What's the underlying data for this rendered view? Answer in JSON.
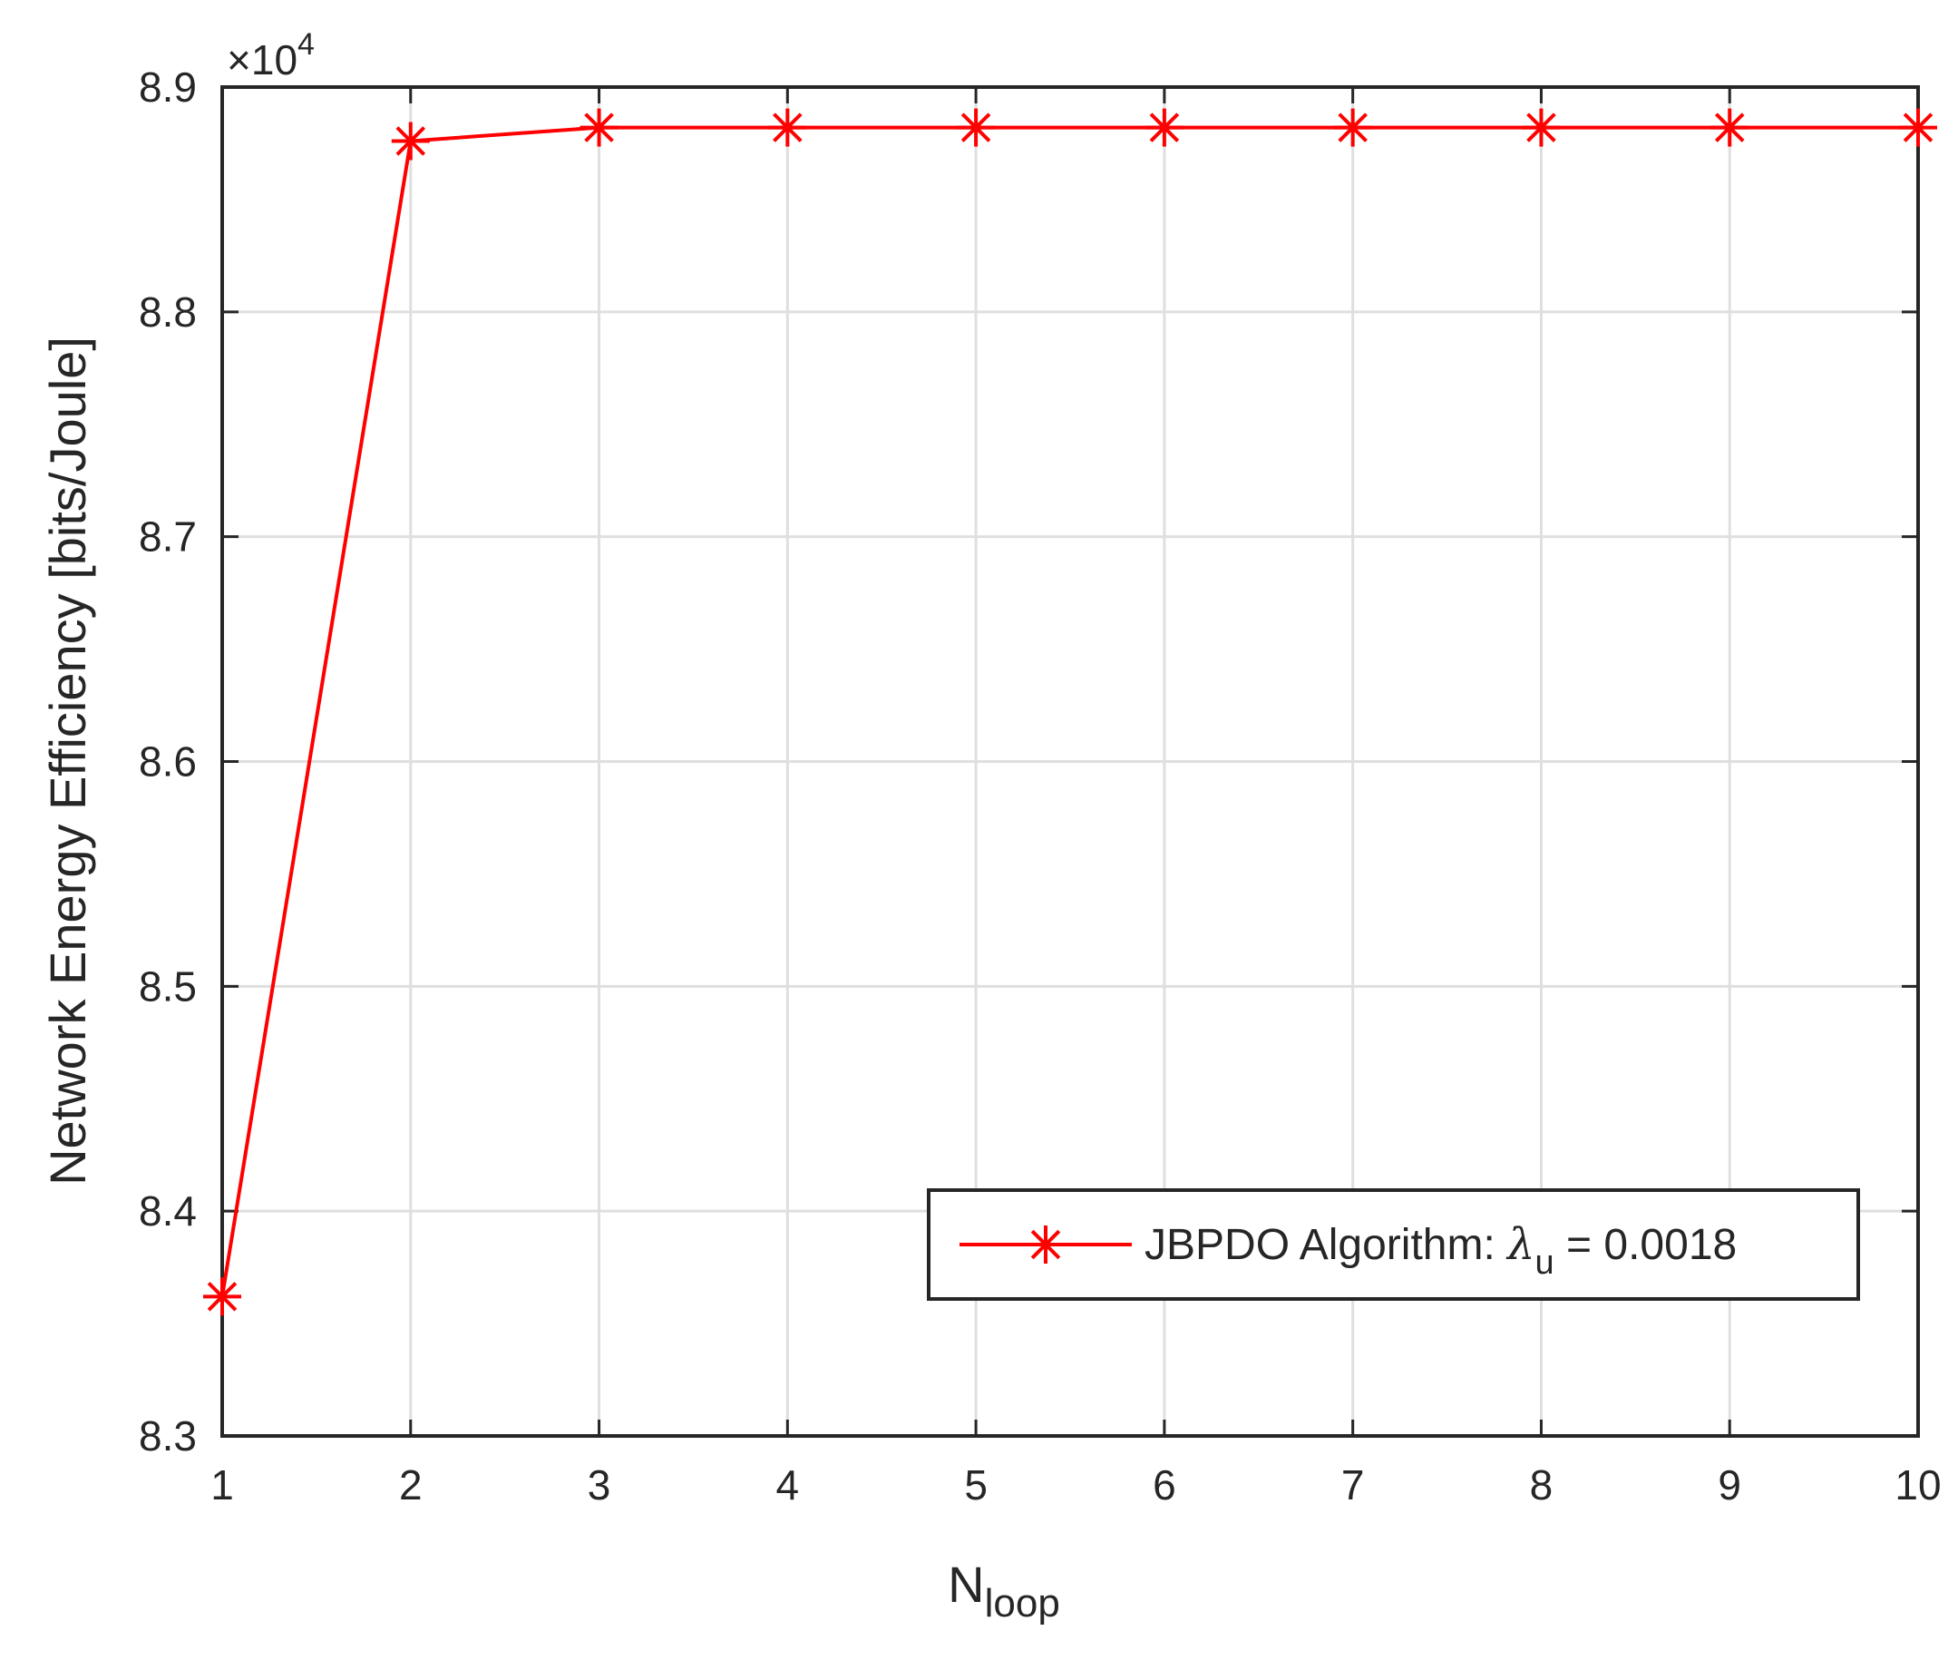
{
  "chart_data": {
    "type": "line",
    "title": "",
    "xlabel": {
      "main": "N",
      "subscript": "loop"
    },
    "ylabel": "Network Energy Efficiency [bits/Joule]",
    "y_exponent_label": {
      "prefix": "×10",
      "exponent": "4"
    },
    "xlim": [
      1,
      10
    ],
    "ylim": [
      8.3,
      8.9
    ],
    "x_ticks": [
      1,
      2,
      3,
      4,
      5,
      6,
      7,
      8,
      9,
      10
    ],
    "x_tick_labels": [
      "1",
      "2",
      "3",
      "4",
      "5",
      "6",
      "7",
      "8",
      "9",
      "10"
    ],
    "y_ticks": [
      8.3,
      8.4,
      8.5,
      8.6,
      8.7,
      8.8,
      8.9
    ],
    "y_tick_labels": [
      "8.3",
      "8.4",
      "8.5",
      "8.6",
      "8.7",
      "8.8",
      "8.9"
    ],
    "grid": true,
    "legend_position": "lower-right",
    "series": [
      {
        "legend": {
          "prefix": "JBPDO Algorithm: ",
          "symbol": "λ",
          "subscript": "u",
          "suffix": " = 0.0018"
        },
        "color": "#ff0000",
        "marker": "asterisk",
        "x": [
          1,
          2,
          3,
          4,
          5,
          6,
          7,
          8,
          9,
          10
        ],
        "y": [
          8.362,
          8.876,
          8.882,
          8.882,
          8.882,
          8.882,
          8.882,
          8.882,
          8.882,
          8.882
        ]
      }
    ]
  }
}
